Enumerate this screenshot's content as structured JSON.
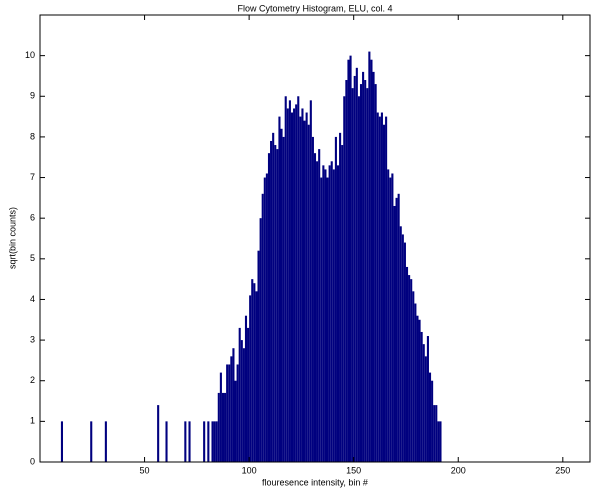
{
  "chart_data": {
    "type": "histogram",
    "title": "Flow Cytometry Histogram, ELU, col. 4",
    "xlabel": "flouresence intensity, bin #",
    "ylabel": "sqrt(bin counts)",
    "color": "#00007f",
    "xlim": [
      0,
      263
    ],
    "ylim": [
      0,
      11
    ],
    "xticks": [
      50,
      100,
      150,
      200,
      250
    ],
    "yticks": [
      0,
      1,
      2,
      3,
      4,
      5,
      6,
      7,
      8,
      9,
      10
    ],
    "grid": false,
    "bins": [
      10,
      11,
      12,
      13,
      14,
      15,
      16,
      17,
      18,
      19,
      20,
      21,
      22,
      23,
      24,
      25,
      26,
      27,
      28,
      29,
      30,
      31,
      32,
      33,
      34,
      35,
      36,
      37,
      38,
      39,
      40,
      41,
      42,
      43,
      44,
      45,
      46,
      47,
      48,
      49,
      50,
      51,
      52,
      53,
      54,
      55,
      56,
      57,
      58,
      59,
      60,
      61,
      62,
      63,
      64,
      65,
      66,
      67,
      68,
      69,
      70,
      71,
      72,
      73,
      74,
      75,
      76,
      77,
      78,
      79,
      80,
      81,
      82,
      83,
      84,
      85,
      86,
      87,
      88,
      89,
      90,
      91,
      92,
      93,
      94,
      95,
      96,
      97,
      98,
      99,
      100,
      101,
      102,
      103,
      104,
      105,
      106,
      107,
      108,
      109,
      110,
      111,
      112,
      113,
      114,
      115,
      116,
      117,
      118,
      119,
      120,
      121,
      122,
      123,
      124,
      125,
      126,
      127,
      128,
      129,
      130,
      131,
      132,
      133,
      134,
      135,
      136,
      137,
      138,
      139,
      140,
      141,
      142,
      143,
      144,
      145,
      146,
      147,
      148,
      149,
      150,
      151,
      152,
      153,
      154,
      155,
      156,
      157,
      158,
      159,
      160,
      161,
      162,
      163,
      164,
      165,
      166,
      167,
      168,
      169,
      170,
      171,
      172,
      173,
      174,
      175,
      176,
      177,
      178,
      179,
      180,
      181,
      182,
      183,
      184,
      185,
      186,
      187,
      188,
      189,
      190,
      191,
      192
    ],
    "values": [
      1,
      0,
      0,
      0,
      0,
      0,
      0,
      0,
      0,
      0,
      0,
      0,
      0,
      0,
      1,
      0,
      0,
      0,
      0,
      0,
      0,
      1,
      0,
      0,
      0,
      0,
      0,
      0,
      0,
      0,
      0,
      0,
      0,
      0,
      0,
      0,
      0,
      0,
      0,
      0,
      0,
      0,
      0,
      0,
      0,
      0,
      1.4,
      0,
      0,
      0,
      1,
      0,
      0,
      0,
      0,
      0,
      0,
      0,
      0,
      1,
      0,
      1,
      0,
      0,
      0,
      0,
      0,
      0,
      1,
      0,
      1,
      0,
      1,
      1,
      1,
      1.7,
      2.2,
      1.7,
      1.7,
      2.4,
      2.4,
      2.6,
      2.8,
      2.0,
      2.4,
      3.3,
      3.0,
      2.8,
      3.6,
      3.3,
      4.1,
      4.5,
      4.4,
      4.2,
      5.2,
      6.0,
      6.6,
      7.0,
      7.1,
      7.6,
      7.9,
      8.1,
      7.8,
      7.7,
      8.5,
      8.2,
      8.0,
      9.0,
      8.7,
      8.9,
      8.6,
      8.7,
      8.8,
      9.0,
      8.5,
      8.7,
      8.4,
      8.6,
      8.3,
      8.9,
      8.0,
      7.6,
      7.4,
      7.7,
      7.0,
      7.3,
      7.2,
      7.0,
      7.3,
      7.4,
      7.2,
      8.0,
      7.3,
      8.1,
      7.8,
      9.0,
      9.4,
      9.9,
      10.0,
      9.2,
      9.5,
      9.7,
      9.0,
      9.3,
      9.6,
      9.4,
      9.2,
      10.1,
      9.9,
      9.6,
      9.3,
      8.6,
      8.5,
      8.6,
      8.3,
      8.5,
      7.2,
      7.0,
      7.1,
      6.3,
      6.5,
      6.6,
      5.8,
      5.6,
      5.4,
      4.8,
      4.6,
      4.5,
      4.2,
      3.9,
      3.6,
      3.5,
      3.2,
      2.9,
      2.6,
      3.1,
      2.2,
      2.0,
      1.4,
      1.4,
      1.0,
      1.0
    ]
  }
}
